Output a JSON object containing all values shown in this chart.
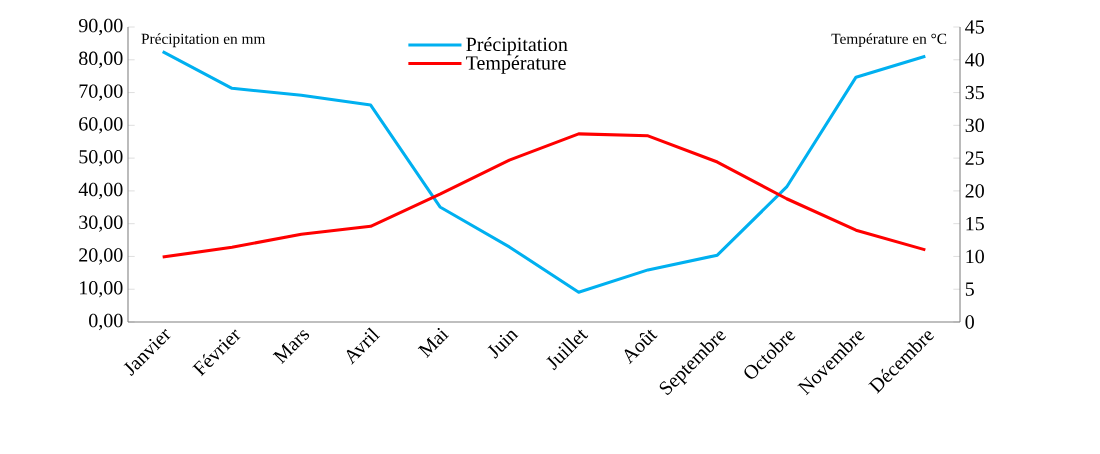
{
  "chart_data": {
    "type": "line",
    "categories": [
      "Janvier",
      "Février",
      "Mars",
      "Avril",
      "Mai",
      "Juin",
      "Juillet",
      "Août",
      "Septembre",
      "Octobre",
      "Novembre",
      "Décembre"
    ],
    "ylabel": "Précipitation en mm",
    "y2label": "Température en °C",
    "series": [
      {
        "name": "Précipitation",
        "color": "#00b0f0",
        "values": [
          82.5,
          71.3,
          69.2,
          66.2,
          35.1,
          22.9,
          9.1,
          15.9,
          20.4,
          41.2,
          74.7,
          81.1
        ]
      },
      {
        "name": "Température",
        "color": "#ff0000",
        "axis": "y2",
        "values": [
          9.9,
          11.4,
          13.4,
          14.6,
          19.5,
          24.7,
          28.7,
          28.4,
          24.4,
          18.8,
          14.0,
          11.0
        ]
      }
    ],
    "ylim": [
      0,
      90
    ],
    "yticks": [
      {
        "value": 0,
        "label": "0,00"
      },
      {
        "value": 10,
        "label": "10,00"
      },
      {
        "value": 20,
        "label": "20,00"
      },
      {
        "value": 30,
        "label": "30,00"
      },
      {
        "value": 40,
        "label": "40,00"
      },
      {
        "value": 50,
        "label": "50,00"
      },
      {
        "value": 60,
        "label": "60,00"
      },
      {
        "value": 70,
        "label": "70,00"
      },
      {
        "value": 80,
        "label": "80,00"
      },
      {
        "value": 90,
        "label": "90,00"
      }
    ],
    "y2lim": [
      0,
      45
    ],
    "y2ticks": [
      0,
      5,
      10,
      15,
      20,
      25,
      30,
      35,
      40,
      45
    ],
    "legend": "top",
    "grid": false,
    "marker": "none",
    "line_style": "solid"
  }
}
